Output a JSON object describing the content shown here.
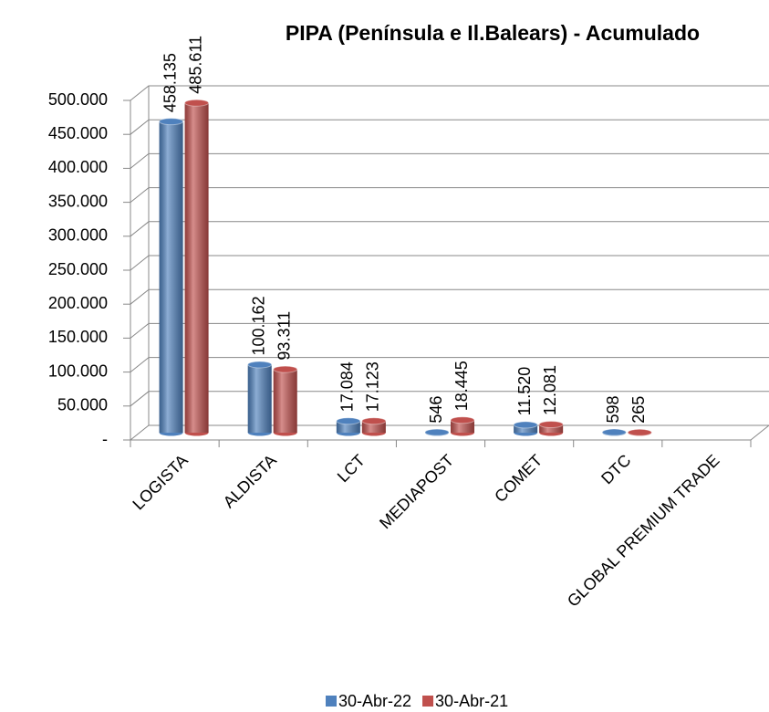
{
  "chart_data": {
    "type": "bar3d",
    "title": "PIPA  (Península e Il.Balears) - Acumulado",
    "categories": [
      "LOGISTA",
      "ALDISTA",
      "LCT",
      "MEDIAPOST",
      "COMET",
      "DTC",
      "GLOBAL PREMIUM TRADE"
    ],
    "series": [
      {
        "name": "30-Abr-22",
        "color": "#4F81BD",
        "values": [
          458135,
          100162,
          17084,
          546,
          11520,
          598,
          null
        ],
        "value_labels": [
          "458.135",
          "100.162",
          "17.084",
          "546",
          "11.520",
          "598",
          null
        ]
      },
      {
        "name": "30-Abr-21",
        "color": "#C0504D",
        "values": [
          485611,
          93311,
          17123,
          18445,
          12081,
          265,
          null
        ],
        "value_labels": [
          "485.611",
          "93.311",
          "17.123",
          "18.445",
          "12.081",
          "265",
          null
        ]
      }
    ],
    "ylim": [
      0,
      500000
    ],
    "yticks": [
      {
        "value": 0,
        "label": "-"
      },
      {
        "value": 50000,
        "label": "50.000"
      },
      {
        "value": 100000,
        "label": "100.000"
      },
      {
        "value": 150000,
        "label": "150.000"
      },
      {
        "value": 200000,
        "label": "200.000"
      },
      {
        "value": 250000,
        "label": "250.000"
      },
      {
        "value": 300000,
        "label": "300.000"
      },
      {
        "value": 350000,
        "label": "350.000"
      },
      {
        "value": 400000,
        "label": "400.000"
      },
      {
        "value": 450000,
        "label": "450.000"
      },
      {
        "value": 500000,
        "label": "500.000"
      }
    ],
    "grid": true,
    "legend": "bottom"
  }
}
